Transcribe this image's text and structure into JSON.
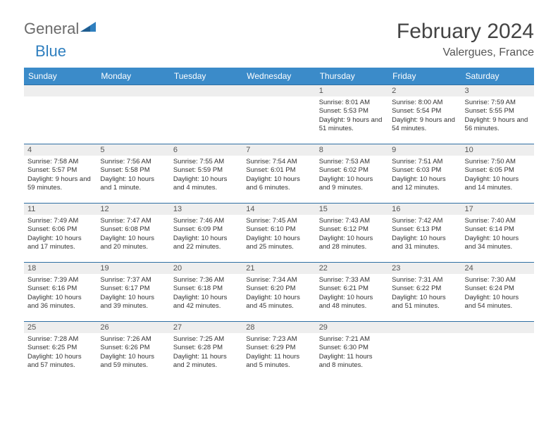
{
  "logo": {
    "text1": "General",
    "text2": "Blue"
  },
  "title": "February 2024",
  "location": "Valergues, France",
  "weekdays": [
    "Sunday",
    "Monday",
    "Tuesday",
    "Wednesday",
    "Thursday",
    "Friday",
    "Saturday"
  ],
  "colors": {
    "header_bg": "#3b8bc9",
    "header_text": "#ffffff",
    "row_border": "#2f6fa3",
    "daynum_bg": "#eeeeee",
    "logo_gray": "#6b6b6b",
    "logo_blue": "#2f7fbf"
  },
  "layout": {
    "columns": 7,
    "first_weekday_index": 4,
    "days_in_month": 29
  },
  "days": [
    {
      "n": 1,
      "sunrise": "8:01 AM",
      "sunset": "5:53 PM",
      "daylight": "9 hours and 51 minutes."
    },
    {
      "n": 2,
      "sunrise": "8:00 AM",
      "sunset": "5:54 PM",
      "daylight": "9 hours and 54 minutes."
    },
    {
      "n": 3,
      "sunrise": "7:59 AM",
      "sunset": "5:55 PM",
      "daylight": "9 hours and 56 minutes."
    },
    {
      "n": 4,
      "sunrise": "7:58 AM",
      "sunset": "5:57 PM",
      "daylight": "9 hours and 59 minutes."
    },
    {
      "n": 5,
      "sunrise": "7:56 AM",
      "sunset": "5:58 PM",
      "daylight": "10 hours and 1 minute."
    },
    {
      "n": 6,
      "sunrise": "7:55 AM",
      "sunset": "5:59 PM",
      "daylight": "10 hours and 4 minutes."
    },
    {
      "n": 7,
      "sunrise": "7:54 AM",
      "sunset": "6:01 PM",
      "daylight": "10 hours and 6 minutes."
    },
    {
      "n": 8,
      "sunrise": "7:53 AM",
      "sunset": "6:02 PM",
      "daylight": "10 hours and 9 minutes."
    },
    {
      "n": 9,
      "sunrise": "7:51 AM",
      "sunset": "6:03 PM",
      "daylight": "10 hours and 12 minutes."
    },
    {
      "n": 10,
      "sunrise": "7:50 AM",
      "sunset": "6:05 PM",
      "daylight": "10 hours and 14 minutes."
    },
    {
      "n": 11,
      "sunrise": "7:49 AM",
      "sunset": "6:06 PM",
      "daylight": "10 hours and 17 minutes."
    },
    {
      "n": 12,
      "sunrise": "7:47 AM",
      "sunset": "6:08 PM",
      "daylight": "10 hours and 20 minutes."
    },
    {
      "n": 13,
      "sunrise": "7:46 AM",
      "sunset": "6:09 PM",
      "daylight": "10 hours and 22 minutes."
    },
    {
      "n": 14,
      "sunrise": "7:45 AM",
      "sunset": "6:10 PM",
      "daylight": "10 hours and 25 minutes."
    },
    {
      "n": 15,
      "sunrise": "7:43 AM",
      "sunset": "6:12 PM",
      "daylight": "10 hours and 28 minutes."
    },
    {
      "n": 16,
      "sunrise": "7:42 AM",
      "sunset": "6:13 PM",
      "daylight": "10 hours and 31 minutes."
    },
    {
      "n": 17,
      "sunrise": "7:40 AM",
      "sunset": "6:14 PM",
      "daylight": "10 hours and 34 minutes."
    },
    {
      "n": 18,
      "sunrise": "7:39 AM",
      "sunset": "6:16 PM",
      "daylight": "10 hours and 36 minutes."
    },
    {
      "n": 19,
      "sunrise": "7:37 AM",
      "sunset": "6:17 PM",
      "daylight": "10 hours and 39 minutes."
    },
    {
      "n": 20,
      "sunrise": "7:36 AM",
      "sunset": "6:18 PM",
      "daylight": "10 hours and 42 minutes."
    },
    {
      "n": 21,
      "sunrise": "7:34 AM",
      "sunset": "6:20 PM",
      "daylight": "10 hours and 45 minutes."
    },
    {
      "n": 22,
      "sunrise": "7:33 AM",
      "sunset": "6:21 PM",
      "daylight": "10 hours and 48 minutes."
    },
    {
      "n": 23,
      "sunrise": "7:31 AM",
      "sunset": "6:22 PM",
      "daylight": "10 hours and 51 minutes."
    },
    {
      "n": 24,
      "sunrise": "7:30 AM",
      "sunset": "6:24 PM",
      "daylight": "10 hours and 54 minutes."
    },
    {
      "n": 25,
      "sunrise": "7:28 AM",
      "sunset": "6:25 PM",
      "daylight": "10 hours and 57 minutes."
    },
    {
      "n": 26,
      "sunrise": "7:26 AM",
      "sunset": "6:26 PM",
      "daylight": "10 hours and 59 minutes."
    },
    {
      "n": 27,
      "sunrise": "7:25 AM",
      "sunset": "6:28 PM",
      "daylight": "11 hours and 2 minutes."
    },
    {
      "n": 28,
      "sunrise": "7:23 AM",
      "sunset": "6:29 PM",
      "daylight": "11 hours and 5 minutes."
    },
    {
      "n": 29,
      "sunrise": "7:21 AM",
      "sunset": "6:30 PM",
      "daylight": "11 hours and 8 minutes."
    }
  ],
  "labels": {
    "sunrise": "Sunrise: ",
    "sunset": "Sunset: ",
    "daylight": "Daylight: "
  }
}
